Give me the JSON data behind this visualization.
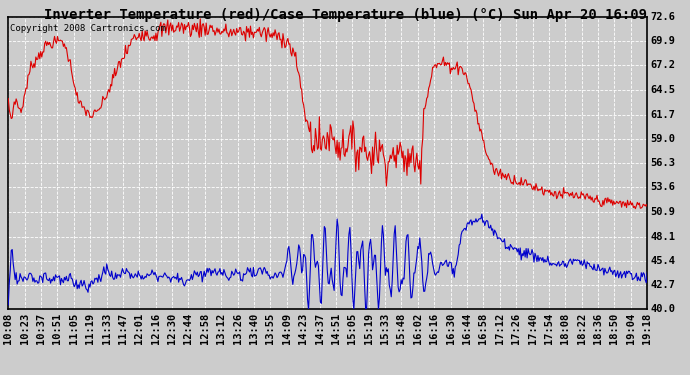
{
  "title": "Inverter Temperature (red)/Case Temperature (blue) (°C) Sun Apr 20 16:09",
  "copyright": "Copyright 2008 Cartronics.com",
  "ylim": [
    40.0,
    72.6
  ],
  "yticks": [
    40.0,
    42.7,
    45.4,
    48.1,
    50.9,
    53.6,
    56.3,
    59.0,
    61.7,
    64.5,
    67.2,
    69.9,
    72.6
  ],
  "bg_color": "#cccccc",
  "plot_bg_color": "#cccccc",
  "grid_color": "#ffffff",
  "red_color": "#dd0000",
  "blue_color": "#0000cc",
  "title_fontsize": 10,
  "copyright_fontsize": 6.5,
  "tick_fontsize": 7.5,
  "n_points": 650,
  "xtick_labels": [
    "10:08",
    "10:23",
    "10:37",
    "10:51",
    "11:05",
    "11:19",
    "11:33",
    "11:47",
    "12:01",
    "12:16",
    "12:30",
    "12:44",
    "12:58",
    "13:12",
    "13:26",
    "13:40",
    "13:55",
    "14:09",
    "14:23",
    "14:37",
    "14:51",
    "15:05",
    "15:19",
    "15:33",
    "15:48",
    "16:02",
    "16:16",
    "16:30",
    "16:44",
    "16:58",
    "17:12",
    "17:26",
    "17:40",
    "17:54",
    "18:08",
    "18:22",
    "18:36",
    "18:50",
    "19:04",
    "19:18"
  ]
}
